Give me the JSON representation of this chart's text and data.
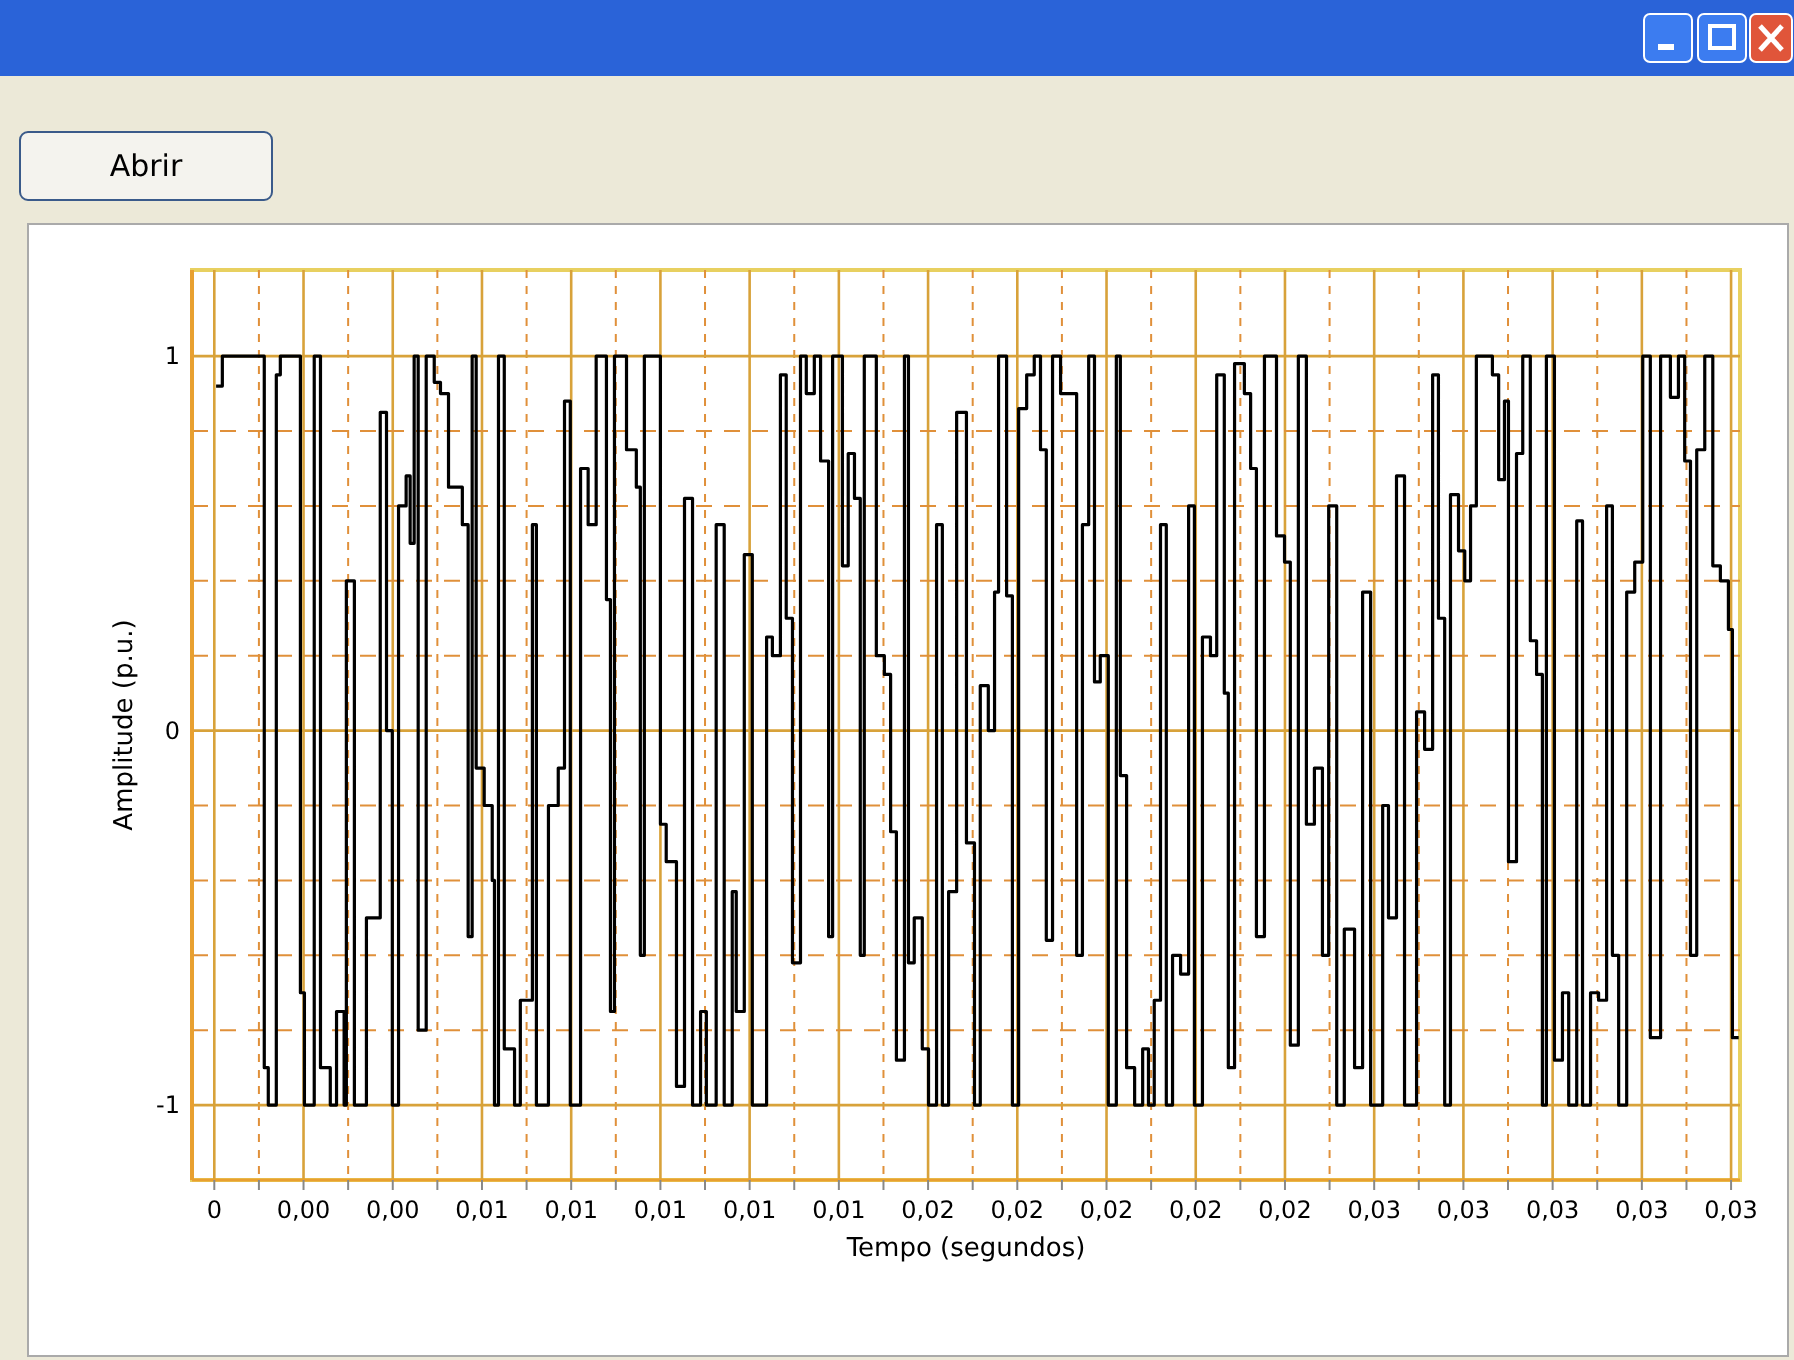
{
  "chart_data": {
    "type": "step",
    "xlabel": "Tempo (segundos)",
    "ylabel": "Amplitude (p.u.)",
    "annotations": [
      "Abrir"
    ],
    "x": [
      4e-05,
      0.00018,
      0.00112,
      0.00121,
      0.00139,
      0.00148,
      0.00193,
      0.00202,
      0.00224,
      0.00238,
      0.0026,
      0.00274,
      0.00291,
      0.00296,
      0.00314,
      0.00341,
      0.00372,
      0.00386,
      0.00399,
      0.00413,
      0.0043,
      0.00439,
      0.00448,
      0.00457,
      0.00475,
      0.00493,
      0.00507,
      0.00525,
      0.00556,
      0.00569,
      0.00578,
      0.00587,
      0.00605,
      0.00623,
      0.00628,
      0.00637,
      0.0065,
      0.00673,
      0.00686,
      0.00713,
      0.00722,
      0.00749,
      0.00771,
      0.00785,
      0.00798,
      0.00821,
      0.00838,
      0.00856,
      0.00879,
      0.00888,
      0.00897,
      0.00924,
      0.00946,
      0.00955,
      0.00964,
      0.01,
      0.01013,
      0.01036,
      0.01054,
      0.01072,
      0.0109,
      0.01103,
      0.01125,
      0.01143,
      0.01161,
      0.0117,
      0.01188,
      0.01206,
      0.01238,
      0.01251,
      0.01269,
      0.01282,
      0.01296,
      0.01314,
      0.01327,
      0.01345,
      0.01359,
      0.01377,
      0.01386,
      0.01408,
      0.01421,
      0.01435,
      0.01448,
      0.01457,
      0.01484,
      0.01502,
      0.01516,
      0.01529,
      0.01547,
      0.01556,
      0.01569,
      0.01587,
      0.01601,
      0.01619,
      0.01632,
      0.01646,
      0.01664,
      0.01686,
      0.01704,
      0.01717,
      0.01735,
      0.01749,
      0.01758,
      0.01776,
      0.01789,
      0.01803,
      0.01821,
      0.01838,
      0.01852,
      0.01865,
      0.01879,
      0.01897,
      0.0191,
      0.01933,
      0.01946,
      0.0196,
      0.01973,
      0.01986,
      0.02004,
      0.02022,
      0.02031,
      0.02045,
      0.02063,
      0.02081,
      0.02094,
      0.02107,
      0.02121,
      0.02134,
      0.02148,
      0.02166,
      0.02184,
      0.02197,
      0.02215,
      0.02233,
      0.02247,
      0.02264,
      0.02273,
      0.02287,
      0.02309,
      0.02323,
      0.02336,
      0.02354,
      0.02381,
      0.02399,
      0.02412,
      0.0243,
      0.02448,
      0.02466,
      0.02484,
      0.02498,
      0.02516,
      0.02533,
      0.02556,
      0.02574,
      0.02592,
      0.02619,
      0.02632,
      0.0265,
      0.02668,
      0.02695,
      0.02713,
      0.02731,
      0.02744,
      0.02758,
      0.02771,
      0.02789,
      0.02803,
      0.02816,
      0.02829,
      0.02865,
      0.02879,
      0.02892,
      0.02901,
      0.02919,
      0.02933,
      0.0295,
      0.02964,
      0.02977,
      0.02986,
      0.03004,
      0.03022,
      0.03036,
      0.03054,
      0.03067,
      0.03085,
      0.03103,
      0.03121,
      0.03134,
      0.03148,
      0.03166,
      0.03184,
      0.03202,
      0.03219,
      0.03242,
      0.03264,
      0.03282,
      0.03296,
      0.03309,
      0.03323,
      0.03341,
      0.03359,
      0.03376,
      0.03394,
      0.03403,
      0.03417
    ],
    "series": [
      {
        "color": "#000000",
        "values": [
          0.92,
          1,
          -0.9,
          -1,
          0.95,
          1,
          -0.7,
          -1,
          1,
          -0.9,
          -1,
          -0.75,
          -1,
          0.4,
          -1,
          -0.5,
          0.85,
          0,
          -1,
          0.6,
          0.68,
          0.5,
          1,
          -0.8,
          1,
          0.93,
          0.9,
          0.65,
          0.55,
          -0.55,
          1,
          -0.1,
          -0.2,
          -0.4,
          -1,
          1,
          -0.85,
          -1,
          -0.72,
          0.55,
          -1,
          -0.2,
          -0.1,
          0.88,
          -1,
          0.7,
          0.55,
          1,
          0.35,
          -0.75,
          1,
          0.75,
          0.65,
          -0.6,
          1,
          -0.25,
          -0.35,
          -0.95,
          0.62,
          -1,
          -0.75,
          -1,
          0.55,
          -1,
          -0.43,
          -0.75,
          0.47,
          -1,
          0.25,
          0.2,
          0.95,
          0.3,
          -0.62,
          1,
          0.9,
          1,
          0.72,
          -0.55,
          1,
          0.44,
          0.74,
          0.62,
          -0.6,
          1,
          0.2,
          0.15,
          -0.27,
          -0.88,
          1,
          -0.62,
          -0.5,
          -0.85,
          -1,
          0.55,
          -1,
          -0.43,
          0.85,
          -0.3,
          -1,
          0.12,
          0,
          0.37,
          1,
          0.36,
          -1,
          0.86,
          0.95,
          1,
          0.75,
          -0.56,
          1,
          0.9,
          0.9,
          -0.6,
          0.55,
          1,
          0.13,
          0.2,
          -1,
          1,
          -0.12,
          -0.9,
          -1,
          -0.85,
          -1,
          -0.72,
          0.55,
          -1,
          -0.6,
          -0.65,
          0.6,
          -1,
          0.25,
          0.2,
          0.95,
          0.1,
          -0.9,
          0.98,
          0.9,
          0.7,
          -0.55,
          1,
          0.52,
          0.45,
          -0.84,
          1,
          -0.25,
          -0.1,
          -0.6,
          0.6,
          -1,
          -0.53,
          -0.9,
          0.37,
          -1,
          -0.2,
          -0.5,
          0.68,
          -1,
          0.05,
          -0.05,
          0.95,
          0.3,
          -1,
          0.63,
          0.48,
          0.4,
          0.6,
          1,
          0.95,
          0.67,
          0.88,
          -0.35,
          0.74,
          1,
          0.24,
          0.15,
          -1,
          1,
          -0.88,
          -0.7,
          -1,
          0.56,
          -1,
          -0.7,
          -0.72,
          0.6,
          -0.6,
          -1,
          0.37,
          0.45,
          1,
          -0.82,
          1,
          0.89,
          1,
          0.72,
          -0.6,
          0.75,
          1,
          0.44,
          0.4,
          0.27,
          -0.82,
          -0.82
        ]
      }
    ],
    "xlim": [
      -0.0005,
      0.0342
    ],
    "ylim": [
      -1.2,
      1.23
    ],
    "xticks": [
      {
        "value": 0,
        "label": "0"
      },
      {
        "value": 0.001,
        "label": null
      },
      {
        "value": 0.002,
        "label": "0,00"
      },
      {
        "value": 0.003,
        "label": null
      },
      {
        "value": 0.004,
        "label": "0,00"
      },
      {
        "value": 0.005,
        "label": null
      },
      {
        "value": 0.006,
        "label": "0,01"
      },
      {
        "value": 0.007,
        "label": null
      },
      {
        "value": 0.008,
        "label": "0,01"
      },
      {
        "value": 0.009,
        "label": null
      },
      {
        "value": 0.01,
        "label": "0,01"
      },
      {
        "value": 0.011,
        "label": null
      },
      {
        "value": 0.012,
        "label": "0,01"
      },
      {
        "value": 0.013,
        "label": null
      },
      {
        "value": 0.014,
        "label": "0,01"
      },
      {
        "value": 0.015,
        "label": null
      },
      {
        "value": 0.016,
        "label": "0,02"
      },
      {
        "value": 0.017,
        "label": null
      },
      {
        "value": 0.018,
        "label": "0,02"
      },
      {
        "value": 0.019,
        "label": null
      },
      {
        "value": 0.02,
        "label": "0,02"
      },
      {
        "value": 0.021,
        "label": null
      },
      {
        "value": 0.022,
        "label": "0,02"
      },
      {
        "value": 0.023,
        "label": null
      },
      {
        "value": 0.024,
        "label": "0,02"
      },
      {
        "value": 0.025,
        "label": null
      },
      {
        "value": 0.026,
        "label": "0,03"
      },
      {
        "value": 0.027,
        "label": null
      },
      {
        "value": 0.028,
        "label": "0,03"
      },
      {
        "value": 0.029,
        "label": null
      },
      {
        "value": 0.03,
        "label": "0,03"
      },
      {
        "value": 0.031,
        "label": null
      },
      {
        "value": 0.032,
        "label": "0,03"
      },
      {
        "value": 0.033,
        "label": null
      },
      {
        "value": 0.034,
        "label": "0,03"
      }
    ],
    "yticks": [
      -1,
      {
        "value": -0.8,
        "label": null
      },
      {
        "value": -0.6,
        "label": null
      },
      {
        "value": -0.4,
        "label": null
      },
      {
        "value": -0.2,
        "label": null
      },
      0,
      {
        "value": 0.2,
        "label": null
      },
      {
        "value": 0.4,
        "label": null
      },
      {
        "value": 0.6,
        "label": null
      },
      {
        "value": 0.8,
        "label": null
      },
      1
    ],
    "grid": true
  }
}
